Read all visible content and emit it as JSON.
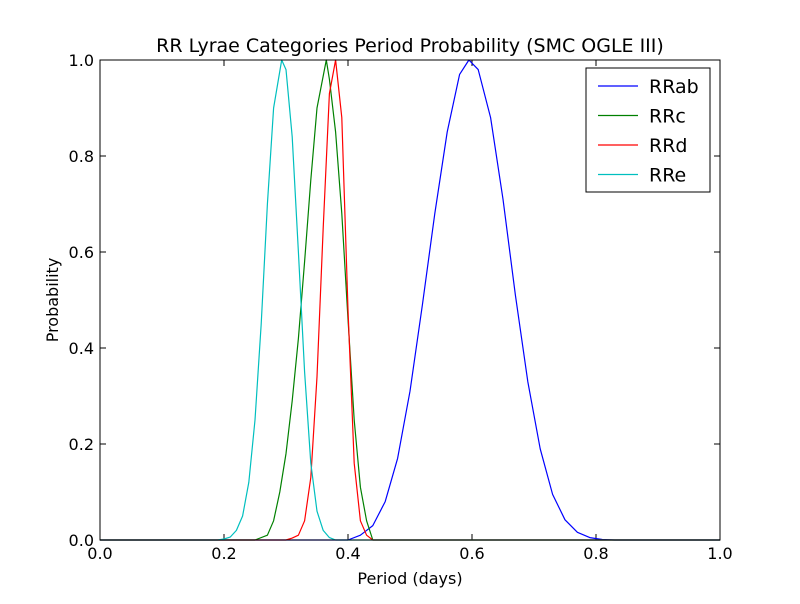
{
  "chart_data": {
    "type": "line",
    "title": "RR Lyrae Categories Period Probability (SMC OGLE III)",
    "xlabel": "Period (days)",
    "ylabel": "Probability",
    "xlim": [
      0.0,
      1.0
    ],
    "ylim": [
      0.0,
      1.0
    ],
    "xticks": [
      "0.0",
      "0.2",
      "0.4",
      "0.6",
      "0.8",
      "1.0"
    ],
    "yticks": [
      "0.0",
      "0.2",
      "0.4",
      "0.6",
      "0.8",
      "1.0"
    ],
    "grid": false,
    "legend_position": "top-right",
    "series": [
      {
        "name": "RRab",
        "color": "#0000ff",
        "peak_period": 0.595,
        "x": [
          0.4,
          0.42,
          0.44,
          0.46,
          0.48,
          0.5,
          0.52,
          0.54,
          0.56,
          0.58,
          0.595,
          0.61,
          0.63,
          0.65,
          0.67,
          0.69,
          0.71,
          0.73,
          0.75,
          0.77,
          0.79,
          0.81,
          0.83
        ],
        "y": [
          0.0,
          0.01,
          0.03,
          0.08,
          0.17,
          0.31,
          0.49,
          0.68,
          0.85,
          0.97,
          1.0,
          0.98,
          0.88,
          0.71,
          0.51,
          0.33,
          0.19,
          0.095,
          0.042,
          0.016,
          0.005,
          0.001,
          0.0
        ]
      },
      {
        "name": "RRc",
        "color": "#008000",
        "peak_period": 0.365,
        "x": [
          0.25,
          0.27,
          0.28,
          0.29,
          0.3,
          0.31,
          0.32,
          0.33,
          0.34,
          0.35,
          0.365,
          0.37,
          0.38,
          0.39,
          0.4,
          0.41,
          0.42,
          0.43,
          0.44
        ],
        "y": [
          0.0,
          0.01,
          0.04,
          0.1,
          0.18,
          0.29,
          0.42,
          0.58,
          0.75,
          0.9,
          1.0,
          0.96,
          0.85,
          0.68,
          0.46,
          0.25,
          0.11,
          0.04,
          0.0
        ]
      },
      {
        "name": "RRd",
        "color": "#ff0000",
        "peak_period": 0.38,
        "x": [
          0.3,
          0.31,
          0.32,
          0.33,
          0.34,
          0.35,
          0.36,
          0.37,
          0.38,
          0.39,
          0.4,
          0.41,
          0.42,
          0.43,
          0.44
        ],
        "y": [
          0.0,
          0.004,
          0.01,
          0.04,
          0.13,
          0.34,
          0.65,
          0.93,
          1.0,
          0.88,
          0.48,
          0.16,
          0.04,
          0.01,
          0.0
        ]
      },
      {
        "name": "RRe",
        "color": "#00bfbf",
        "peak_period": 0.293,
        "x": [
          0.19,
          0.2,
          0.21,
          0.22,
          0.23,
          0.24,
          0.25,
          0.26,
          0.27,
          0.28,
          0.293,
          0.3,
          0.31,
          0.32,
          0.33,
          0.34,
          0.35,
          0.36,
          0.37,
          0.38
        ],
        "y": [
          0.0,
          0.002,
          0.006,
          0.02,
          0.05,
          0.12,
          0.25,
          0.45,
          0.7,
          0.9,
          1.0,
          0.98,
          0.84,
          0.6,
          0.35,
          0.16,
          0.06,
          0.02,
          0.005,
          0.0
        ]
      }
    ]
  }
}
